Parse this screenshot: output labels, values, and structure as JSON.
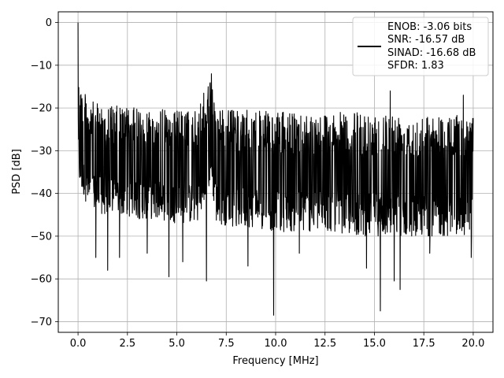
{
  "chart_data": {
    "type": "line",
    "title": "",
    "xlabel": "Frequency [MHz]",
    "ylabel": "PSD [dB]",
    "xlim": [
      -1.0,
      21.0
    ],
    "ylim": [
      -72.5,
      2.5
    ],
    "x_ticks": [
      0.0,
      2.5,
      5.0,
      7.5,
      10.0,
      12.5,
      15.0,
      17.5,
      20.0
    ],
    "x_tick_labels": [
      "0.0",
      "2.5",
      "5.0",
      "7.5",
      "10.0",
      "12.5",
      "15.0",
      "17.5",
      "20.0"
    ],
    "y_ticks": [
      0,
      -10,
      -20,
      -30,
      -40,
      -50,
      -60,
      -70
    ],
    "y_tick_labels": [
      "0",
      "−10",
      "−20",
      "−30",
      "−40",
      "−50",
      "−60",
      "−70"
    ],
    "grid": true,
    "legend_position": "top-right",
    "line_color": "#000000",
    "series": [
      {
        "name": "",
        "description_points": {
          "x": [
            0.0,
            0.05,
            0.1,
            0.2,
            0.5,
            1.0,
            2.0,
            3.0,
            4.0,
            5.0,
            6.0,
            6.5,
            6.7,
            7.0,
            8.0,
            9.0,
            10.0,
            11.0,
            12.0,
            13.0,
            14.0,
            15.0,
            16.0,
            17.0,
            18.0,
            19.0,
            20.0
          ],
          "y_upper": [
            0.0,
            -8.0,
            -12.0,
            -15.0,
            -18.0,
            -19.0,
            -19.5,
            -20.0,
            -20.0,
            -20.5,
            -20.5,
            -15.0,
            -12.0,
            -20.0,
            -20.5,
            -20.5,
            -21.0,
            -21.0,
            -21.0,
            -21.0,
            -21.0,
            -21.0,
            -21.0,
            -21.5,
            -21.5,
            -21.5,
            -22.0
          ],
          "y_lower": [
            -32.0,
            -37.0,
            -39.0,
            -40.0,
            -43.0,
            -45.0,
            -45.0,
            -46.0,
            -46.0,
            -47.0,
            -47.0,
            -44.0,
            -36.0,
            -47.0,
            -48.0,
            -48.0,
            -49.0,
            -49.0,
            -49.0,
            -49.0,
            -50.0,
            -50.0,
            -50.0,
            -50.0,
            -50.0,
            -50.0,
            -50.0
          ]
        },
        "deep_spikes": [
          {
            "x": 0.9,
            "y": -55.0
          },
          {
            "x": 1.5,
            "y": -58.0
          },
          {
            "x": 2.1,
            "y": -55.0
          },
          {
            "x": 3.5,
            "y": -54.0
          },
          {
            "x": 4.6,
            "y": -59.5
          },
          {
            "x": 5.3,
            "y": -56.0
          },
          {
            "x": 6.5,
            "y": -60.5
          },
          {
            "x": 8.6,
            "y": -57.0
          },
          {
            "x": 9.9,
            "y": -68.5
          },
          {
            "x": 11.2,
            "y": -54.0
          },
          {
            "x": 14.6,
            "y": -57.5
          },
          {
            "x": 15.3,
            "y": -67.5
          },
          {
            "x": 16.0,
            "y": -60.5
          },
          {
            "x": 16.3,
            "y": -62.5
          },
          {
            "x": 17.8,
            "y": -54.0
          },
          {
            "x": 19.9,
            "y": -55.0
          }
        ],
        "high_spikes": [
          {
            "x": 6.75,
            "y": -12.0
          },
          {
            "x": 15.8,
            "y": -16.0
          },
          {
            "x": 19.5,
            "y": -17.0
          }
        ]
      }
    ]
  },
  "legend": {
    "line1": "ENOB: -3.06 bits",
    "line2": "SNR: -16.57 dB",
    "line3": "SINAD: -16.68 dB",
    "line4": "SFDR: 1.83"
  }
}
